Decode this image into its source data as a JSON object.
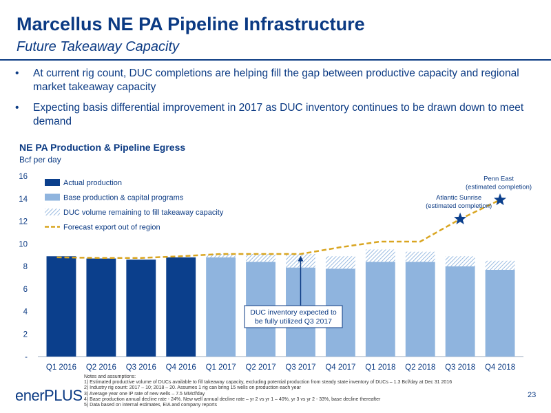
{
  "slide": {
    "title": "Marcellus NE PA Pipeline Infrastructure",
    "subtitle": "Future Takeaway Capacity",
    "bullets": [
      "At current rig count, DUC completions are helping fill the gap between productive capacity and regional market takeaway capacity",
      "Expecting basis differential improvement in 2017 as DUC inventory continues to be drawn down to meet demand"
    ],
    "page_number": "23",
    "logo_text": "enerPLUS"
  },
  "notes": {
    "heading": "Notes and assumptions:",
    "items": [
      "1)     Estimated productive volume of DUCs available to fill takeaway capacity, excluding potential production from steady state inventory of DUCs – 1.3 Bcf/day at Dec 31 2016",
      "2)     Industry rig count: 2017 – 10; 2018 – 20. Assumes 1 rig can bring 15 wells on production each year",
      "3)     Average year one IP rate of new wells – 7.5 MMcf/day",
      "4)     Base production annual decline rate - 24%. New well annual decline rate – yr 2 vs yr 1 – 40%, yr 3 vs yr 2  - 33%, base decline thereafter",
      "5)     Data based on internal estimates, EIA and company reports"
    ]
  },
  "chart_data": {
    "type": "bar",
    "title": "NE PA Production & Pipeline Egress",
    "ylabel": "Bcf per day",
    "ylim": [
      0,
      16
    ],
    "yticks": [
      "-",
      "2",
      "4",
      "6",
      "8",
      "10",
      "12",
      "14",
      "16"
    ],
    "categories": [
      "Q1 2016",
      "Q2 2016",
      "Q3 2016",
      "Q4 2016",
      "Q1 2017",
      "Q2 2017",
      "Q3 2017",
      "Q4 2017",
      "Q1 2018",
      "Q2 2018",
      "Q3 2018",
      "Q4 2018"
    ],
    "series": [
      {
        "name": "Actual production",
        "color": "#0b3f8c",
        "values": [
          8.9,
          8.7,
          8.6,
          8.8,
          null,
          null,
          null,
          null,
          null,
          null,
          null,
          null
        ]
      },
      {
        "name": "Base production & capital programs",
        "color": "#8fb4de",
        "values": [
          null,
          null,
          null,
          null,
          8.8,
          8.4,
          7.9,
          7.8,
          8.4,
          8.4,
          8.0,
          7.7
        ]
      },
      {
        "name": "DUC volume remaining to fill takeaway capacity",
        "color": "#8fb4de",
        "pattern": "hatch",
        "values": [
          null,
          null,
          null,
          null,
          0.3,
          0.7,
          1.2,
          1.1,
          1.1,
          0.9,
          0.9,
          0.8
        ]
      },
      {
        "name": "Forecast export out of region",
        "color": "#d9a520",
        "style": "dashed",
        "values": [
          8.8,
          8.75,
          8.75,
          8.9,
          9.1,
          9.1,
          9.1,
          9.7,
          10.2,
          10.2,
          12.2,
          13.9
        ]
      }
    ],
    "legend_position": "top-left",
    "grid": false,
    "annotations": [
      {
        "text": [
          "Penn East",
          "(estimated completion)"
        ],
        "category": "Q4 2018",
        "value": 13.9,
        "marker": "star"
      },
      {
        "text": [
          "Atlantic Sunrise",
          "(estimated completion)"
        ],
        "category": "Q3 2018",
        "value": 12.2,
        "marker": "star"
      },
      {
        "text": [
          "DUC inventory expected to",
          "be fully utilized Q3 2017"
        ],
        "category": "Q3 2017",
        "arrow_to": 9.0,
        "type": "callout"
      }
    ]
  },
  "colors": {
    "brand_blue": "#0b3a83",
    "actual": "#0b3f8c",
    "forecast": "#8fb4de",
    "export_line": "#d9a520"
  }
}
